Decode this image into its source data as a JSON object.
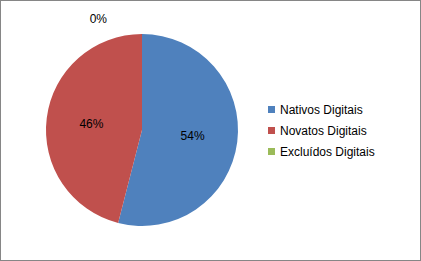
{
  "chart_data": {
    "type": "pie",
    "categories": [
      "Nativos Digitais",
      "Novatos Digitais",
      "Excluídos Digitais"
    ],
    "values": [
      54,
      46,
      0
    ],
    "value_labels": [
      "54%",
      "46%",
      "0%"
    ],
    "colors": [
      "#4f81bd",
      "#c0504d",
      "#9bbb59"
    ],
    "data_labels": true,
    "legend": "right"
  }
}
